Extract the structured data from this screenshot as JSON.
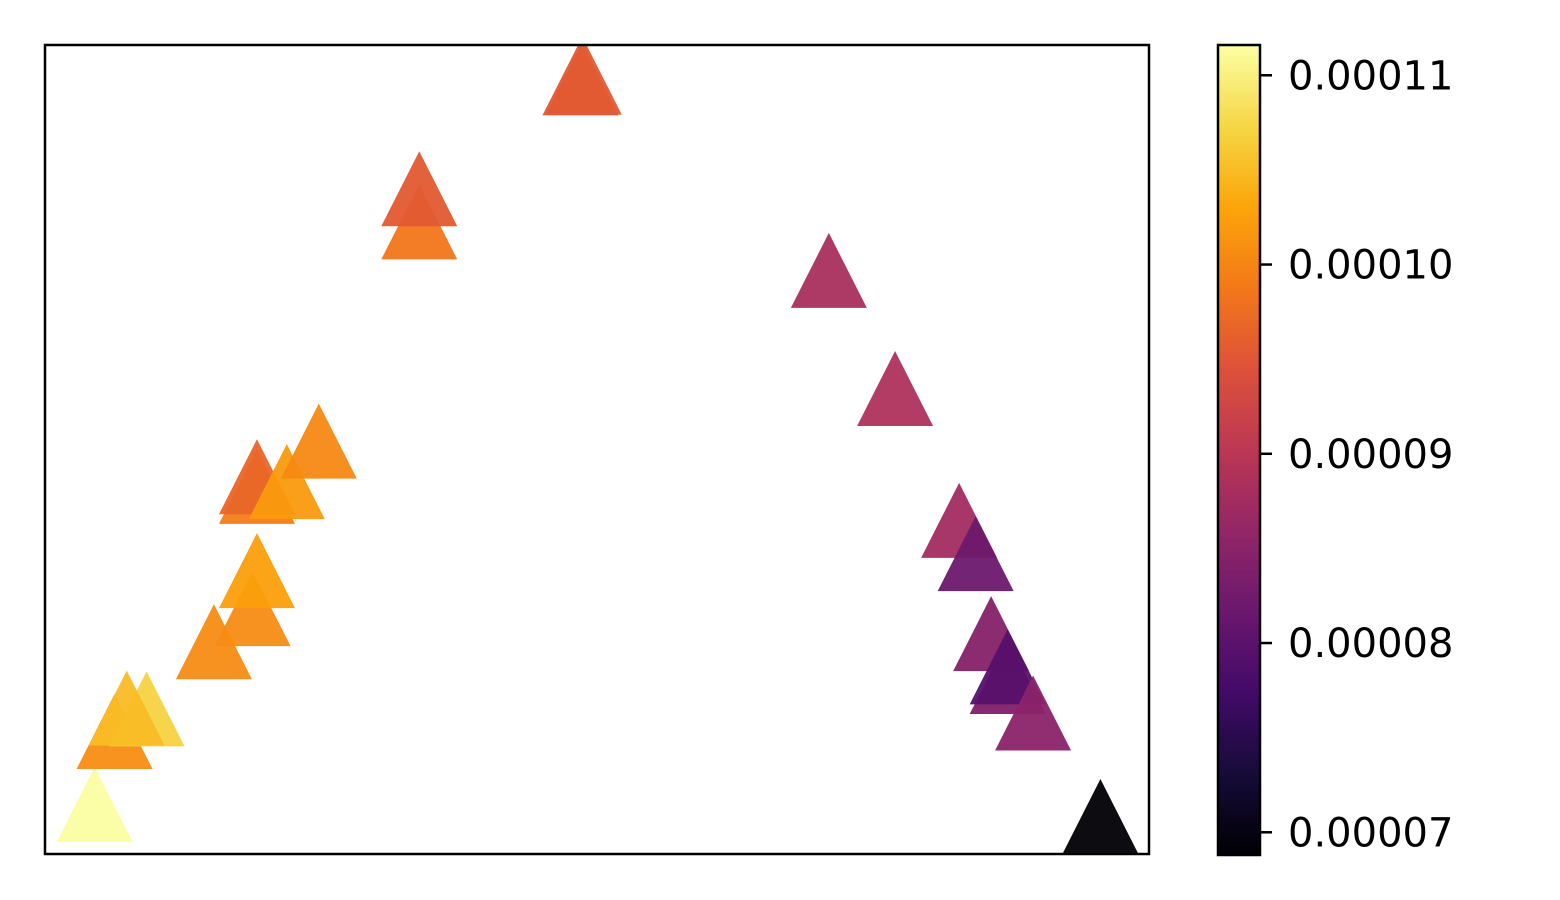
{
  "chart_data": {
    "type": "scatter",
    "marker": "triangle-up",
    "colormap": "inferno",
    "title": "",
    "xlabel": "",
    "ylabel": "",
    "x_ticks_visible": false,
    "y_ticks_visible": false,
    "grid": false,
    "xlim": [
      0,
      100
    ],
    "ylim": [
      0,
      100
    ],
    "colorbar": {
      "range": [
        6.88e-05,
        0.0001116
      ],
      "ticks": [
        7e-05,
        8e-05,
        9e-05,
        0.0001,
        0.00011
      ],
      "tick_labels": [
        "0.00007",
        "0.00008",
        "0.00009",
        "0.00010",
        "0.00011"
      ],
      "placement": "right"
    },
    "points": [
      {
        "x": 4.5,
        "y": 1.5,
        "c": 0.0001115
      },
      {
        "x": 6.3,
        "y": 10.5,
        "c": 0.0001008
      },
      {
        "x": 9.2,
        "y": 13.3,
        "c": 0.000107
      },
      {
        "x": 7.4,
        "y": 13.4,
        "c": 0.000105
      },
      {
        "x": 15.3,
        "y": 21.6,
        "c": 0.0001006
      },
      {
        "x": 18.8,
        "y": 25.7,
        "c": 0.0001006
      },
      {
        "x": 19.2,
        "y": 30.4,
        "c": 0.0001025
      },
      {
        "x": 19.2,
        "y": 40.8,
        "c": 9.9e-05
      },
      {
        "x": 19.2,
        "y": 42.0,
        "c": 9.68e-05
      },
      {
        "x": 21.9,
        "y": 41.4,
        "c": 0.000102
      },
      {
        "x": 24.8,
        "y": 46.4,
        "c": 0.0001004
      },
      {
        "x": 33.9,
        "y": 73.5,
        "c": 9.85e-05
      },
      {
        "x": 33.9,
        "y": 77.6,
        "c": 9.55e-05
      },
      {
        "x": 48.5,
        "y": 91.3,
        "c": 9.52e-05
      },
      {
        "x": 48.8,
        "y": 91.4,
        "c": 9.55e-05
      },
      {
        "x": 71.0,
        "y": 67.5,
        "c": 8.82e-05
      },
      {
        "x": 77.0,
        "y": 52.9,
        "c": 8.87e-05
      },
      {
        "x": 82.8,
        "y": 36.6,
        "c": 8.75e-05
      },
      {
        "x": 84.3,
        "y": 32.5,
        "c": 8.2e-05
      },
      {
        "x": 85.7,
        "y": 22.6,
        "c": 8.45e-05
      },
      {
        "x": 87.2,
        "y": 17.3,
        "c": 8.4e-05
      },
      {
        "x": 87.2,
        "y": 18.5,
        "c": 7.95e-05
      },
      {
        "x": 89.5,
        "y": 12.8,
        "c": 8.5e-05
      },
      {
        "x": 95.6,
        "y": 0.0,
        "c": 6.88e-05
      }
    ]
  }
}
